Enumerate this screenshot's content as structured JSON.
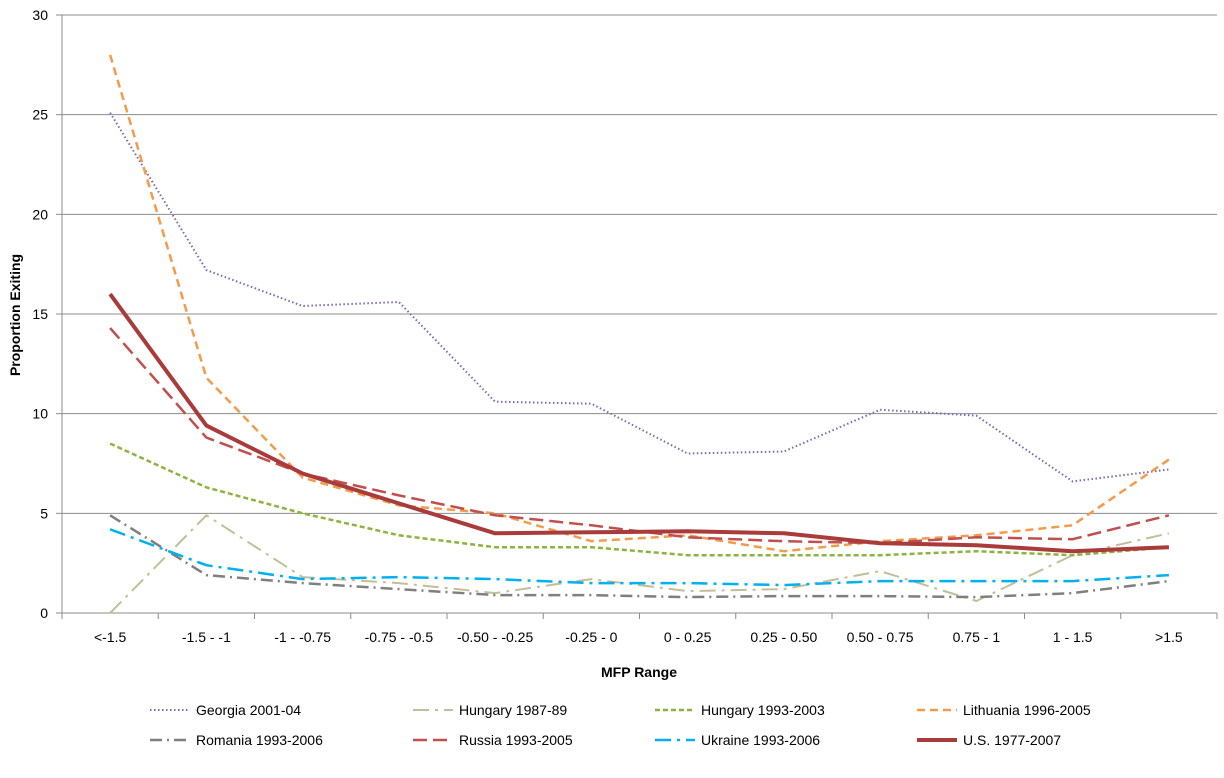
{
  "chart_data": {
    "type": "line",
    "title": "",
    "xlabel": "MFP Range",
    "ylabel": "Proportion Exiting",
    "ylim": [
      0,
      30
    ],
    "yticks": [
      0,
      5,
      10,
      15,
      20,
      25,
      30
    ],
    "grid": "horizontal",
    "legend_position": "bottom",
    "categories": [
      "<-1.5",
      "-1.5 - -1",
      "-1 - -0.75",
      "-0.75 - -0.5",
      "-0.50 - -0.25",
      "-0.25 - 0",
      "0 - 0.25",
      "0.25 - 0.50",
      "0.50 - 0.75",
      "0.75 - 1",
      "1 - 1.5",
      ">1.5"
    ],
    "series": [
      {
        "name": "Georgia 2001-04",
        "color": "#7B68B0",
        "dash": "dotted",
        "width": 2,
        "values": [
          25.1,
          17.2,
          15.4,
          15.6,
          10.6,
          10.5,
          8.0,
          8.1,
          10.2,
          9.9,
          6.6,
          7.2
        ]
      },
      {
        "name": "Hungary 1987-89",
        "color": "#C4BD97",
        "dash": "dashdotlong",
        "width": 2,
        "values": [
          0.0,
          4.9,
          1.8,
          1.5,
          1.0,
          1.7,
          1.1,
          1.2,
          2.1,
          0.6,
          2.9,
          4.0
        ]
      },
      {
        "name": "Hungary 1993-2003",
        "color": "#8DB33E",
        "dash": "dashed-short",
        "width": 2.5,
        "values": [
          8.5,
          6.3,
          5.0,
          3.9,
          3.3,
          3.3,
          2.9,
          2.9,
          2.9,
          3.1,
          2.9,
          3.3
        ]
      },
      {
        "name": "Lithuania 1996-2005",
        "color": "#F39B4A",
        "dash": "dashed",
        "width": 2.5,
        "values": [
          28.0,
          11.8,
          6.8,
          5.4,
          5.0,
          3.6,
          3.9,
          3.1,
          3.6,
          3.9,
          4.4,
          7.7
        ]
      },
      {
        "name": "Romania 1993-2006",
        "color": "#7F7F7F",
        "dash": "dashdot",
        "width": 2.5,
        "values": [
          4.9,
          1.9,
          1.5,
          1.2,
          0.9,
          0.9,
          0.8,
          0.85,
          0.85,
          0.8,
          1.0,
          1.6
        ]
      },
      {
        "name": "Russia 1993-2005",
        "color": "#C0504D",
        "dash": "longdash",
        "width": 2.5,
        "values": [
          14.3,
          8.8,
          7.0,
          5.9,
          4.9,
          4.4,
          3.8,
          3.6,
          3.5,
          3.8,
          3.7,
          4.9
        ]
      },
      {
        "name": "Ukraine 1993-2006",
        "color": "#00B0F0",
        "dash": "dashdotlong",
        "width": 2.5,
        "values": [
          4.2,
          2.4,
          1.7,
          1.8,
          1.7,
          1.5,
          1.5,
          1.4,
          1.6,
          1.6,
          1.6,
          1.9
        ]
      },
      {
        "name": "U.S. 1977-2007",
        "color": "#A93B3B",
        "dash": "solid",
        "width": 4,
        "values": [
          16.0,
          9.4,
          7.0,
          5.5,
          4.0,
          4.05,
          4.1,
          4.0,
          3.5,
          3.4,
          3.1,
          3.3
        ]
      }
    ]
  }
}
